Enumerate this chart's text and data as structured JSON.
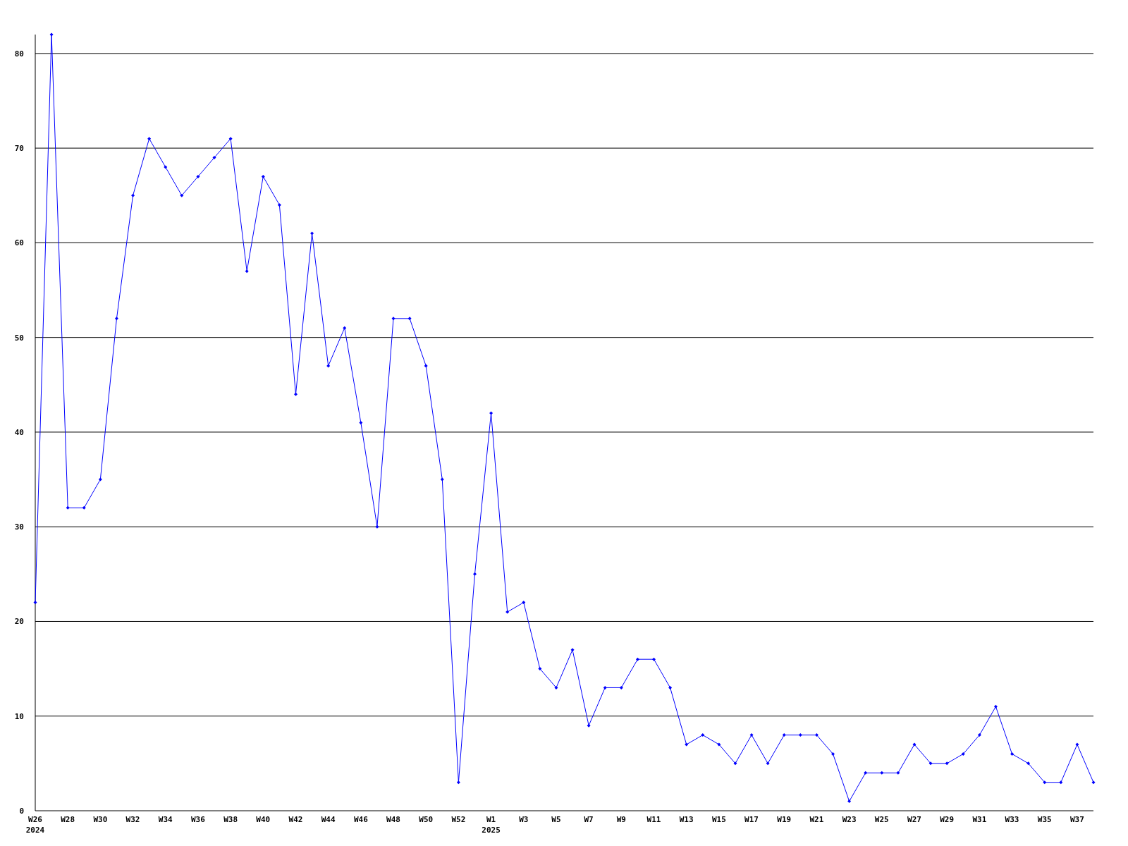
{
  "chart_data": {
    "type": "line",
    "categories": [
      "W26\n2024",
      null,
      "W28",
      null,
      "W30",
      null,
      "W32",
      null,
      "W34",
      null,
      "W36",
      null,
      "W38",
      null,
      "W40",
      null,
      "W42",
      null,
      "W44",
      null,
      "W46",
      null,
      "W48",
      null,
      "W50",
      null,
      "W52",
      null,
      "W1\n2025",
      null,
      "W3",
      null,
      "W5",
      null,
      "W7",
      null,
      "W9",
      null,
      "W11",
      null,
      "W13",
      null,
      "W15",
      null,
      "W17",
      null,
      "W19",
      null,
      "W21",
      null,
      "W23",
      null,
      "W25",
      null,
      "W27",
      null,
      "W29",
      null,
      "W31",
      null,
      "W33",
      null,
      "W35",
      null,
      "W37",
      null
    ],
    "series": [
      {
        "color": "#0000ff",
        "values": [
          22,
          82,
          32,
          32,
          35,
          52,
          65,
          71,
          68,
          65,
          67,
          69,
          71,
          57,
          67,
          64,
          44,
          61,
          47,
          51,
          41,
          30,
          52,
          52,
          47,
          35,
          3,
          25,
          42,
          21,
          22,
          15,
          13,
          17,
          9,
          13,
          13,
          16,
          16,
          13,
          7,
          8,
          7,
          5,
          8,
          5,
          8,
          8,
          8,
          6,
          1,
          4,
          4,
          4,
          7,
          5,
          5,
          6,
          8,
          11,
          6,
          5,
          3,
          3,
          7,
          3
        ]
      }
    ],
    "ylim": [
      0,
      82
    ],
    "yticks": [
      0,
      10,
      20,
      30,
      40,
      50,
      60,
      70,
      80
    ],
    "grid": "y",
    "marker": "diamond",
    "line_style": "solid"
  }
}
